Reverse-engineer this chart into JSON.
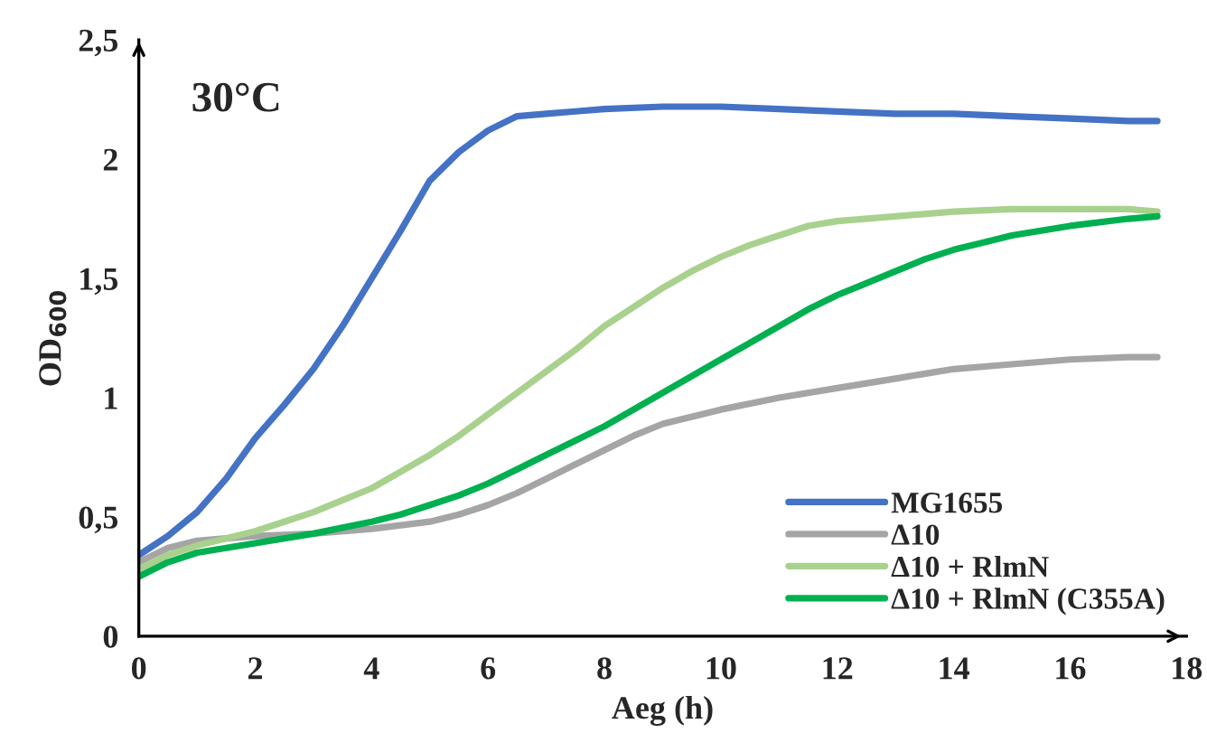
{
  "chart_data": {
    "type": "line",
    "title": "30°C",
    "xlabel": "Aeg (h)",
    "ylabel": "OD$_{600}$",
    "xlim": [
      0,
      18
    ],
    "xticks": [
      0,
      2,
      4,
      6,
      8,
      10,
      12,
      14,
      16,
      18
    ],
    "ylim": [
      0,
      2.5
    ],
    "yticks": [
      0,
      {
        "value": 0.5,
        "label": "0,5"
      },
      1,
      {
        "value": 1.5,
        "label": "1,5"
      },
      2,
      {
        "value": 2.5,
        "label": "2,5"
      }
    ],
    "grid": false,
    "legend": "bottom right",
    "marker": "none",
    "line_style": "solid",
    "series": [
      {
        "name": "MG1655",
        "color": "#4472c4",
        "x": [
          0,
          0.5,
          1,
          1.5,
          2,
          2.5,
          3,
          3.5,
          4,
          4.5,
          5,
          5.5,
          6,
          6.5,
          7,
          7.5,
          8,
          9,
          10,
          11,
          12,
          13,
          14,
          15,
          16,
          17,
          17.5
        ],
        "values": [
          0.34,
          0.42,
          0.52,
          0.66,
          0.83,
          0.97,
          1.12,
          1.3,
          1.5,
          1.7,
          1.91,
          2.03,
          2.12,
          2.18,
          2.19,
          2.2,
          2.21,
          2.22,
          2.22,
          2.21,
          2.2,
          2.19,
          2.19,
          2.18,
          2.17,
          2.16,
          2.16
        ]
      },
      {
        "name": "Δ10",
        "color": "#a5a5a5",
        "x": [
          0,
          0.5,
          1,
          1.5,
          2,
          3,
          4,
          5,
          5.5,
          6,
          6.5,
          7,
          7.5,
          8,
          8.5,
          9,
          10,
          11,
          12,
          13,
          14,
          15,
          16,
          17,
          17.5
        ],
        "values": [
          0.31,
          0.37,
          0.4,
          0.41,
          0.42,
          0.43,
          0.45,
          0.48,
          0.51,
          0.55,
          0.6,
          0.66,
          0.72,
          0.78,
          0.84,
          0.89,
          0.95,
          1.0,
          1.04,
          1.08,
          1.12,
          1.14,
          1.16,
          1.17,
          1.17
        ]
      },
      {
        "name": "Δ10 + RlmN",
        "color": "#a9d18e",
        "x": [
          0,
          0.5,
          1,
          1.5,
          2,
          2.5,
          3,
          3.5,
          4,
          4.5,
          5,
          5.5,
          6,
          6.5,
          7,
          7.5,
          8,
          8.5,
          9,
          9.5,
          10,
          10.5,
          11,
          11.5,
          12,
          13,
          14,
          15,
          16,
          17,
          17.5
        ],
        "values": [
          0.28,
          0.34,
          0.38,
          0.41,
          0.44,
          0.48,
          0.52,
          0.57,
          0.62,
          0.69,
          0.76,
          0.84,
          0.93,
          1.02,
          1.11,
          1.2,
          1.3,
          1.38,
          1.46,
          1.53,
          1.59,
          1.64,
          1.68,
          1.72,
          1.74,
          1.76,
          1.78,
          1.79,
          1.79,
          1.79,
          1.78
        ]
      },
      {
        "name": "Δ10 + RlmN (C355A)",
        "color": "#00b050",
        "x": [
          0,
          0.5,
          1,
          1.5,
          2,
          3,
          4,
          4.5,
          5,
          5.5,
          6,
          6.5,
          7,
          7.5,
          8,
          8.5,
          9,
          9.5,
          10,
          10.5,
          11,
          11.5,
          12,
          12.5,
          13,
          13.5,
          14,
          14.5,
          15,
          16,
          17,
          17.5
        ],
        "values": [
          0.25,
          0.31,
          0.35,
          0.37,
          0.39,
          0.43,
          0.48,
          0.51,
          0.55,
          0.59,
          0.64,
          0.7,
          0.76,
          0.82,
          0.88,
          0.95,
          1.02,
          1.09,
          1.16,
          1.23,
          1.3,
          1.37,
          1.43,
          1.48,
          1.53,
          1.58,
          1.62,
          1.65,
          1.68,
          1.72,
          1.75,
          1.76
        ]
      }
    ]
  }
}
